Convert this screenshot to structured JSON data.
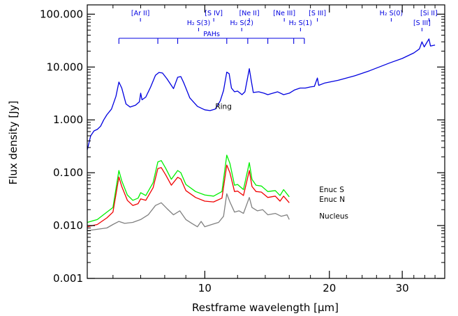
{
  "chart_data": {
    "type": "line",
    "xlabel": "Restframe wavelength [μm]",
    "ylabel": "Flux density [Jy]",
    "xscale": "log",
    "yscale": "log",
    "xlim": [
      5.2,
      38
    ],
    "ylim": [
      0.001,
      150
    ],
    "x_ticks": [
      10,
      20,
      30
    ],
    "x_tick_labels": [
      "10",
      "20",
      "30"
    ],
    "y_ticks": [
      0.001,
      0.01,
      0.1,
      1,
      10,
      100
    ],
    "y_tick_labels": [
      "0.001",
      "0.010",
      "0.100",
      "1.000",
      "10.000",
      "100.000"
    ],
    "series": [
      {
        "name": "Ring",
        "color": "#0000e0",
        "label_at": [
          10.6,
          1.6
        ],
        "points": [
          [
            5.2,
            0.27
          ],
          [
            5.3,
            0.5
          ],
          [
            5.4,
            0.62
          ],
          [
            5.5,
            0.66
          ],
          [
            5.6,
            0.76
          ],
          [
            5.7,
            1.0
          ],
          [
            5.8,
            1.25
          ],
          [
            5.95,
            1.6
          ],
          [
            6.1,
            2.8
          ],
          [
            6.2,
            5.2
          ],
          [
            6.3,
            4.0
          ],
          [
            6.45,
            2.0
          ],
          [
            6.6,
            1.75
          ],
          [
            6.8,
            1.9
          ],
          [
            6.95,
            2.2
          ],
          [
            7.0,
            3.2
          ],
          [
            7.05,
            2.4
          ],
          [
            7.2,
            2.7
          ],
          [
            7.4,
            4.2
          ],
          [
            7.6,
            7.0
          ],
          [
            7.75,
            7.9
          ],
          [
            7.9,
            7.7
          ],
          [
            8.1,
            6.0
          ],
          [
            8.3,
            4.5
          ],
          [
            8.4,
            3.9
          ],
          [
            8.6,
            6.4
          ],
          [
            8.75,
            6.6
          ],
          [
            8.9,
            5.0
          ],
          [
            9.2,
            2.6
          ],
          [
            9.6,
            1.8
          ],
          [
            10.0,
            1.55
          ],
          [
            10.3,
            1.5
          ],
          [
            10.6,
            1.6
          ],
          [
            10.9,
            2.3
          ],
          [
            11.1,
            3.6
          ],
          [
            11.3,
            8.0
          ],
          [
            11.45,
            7.5
          ],
          [
            11.6,
            4.0
          ],
          [
            11.8,
            3.4
          ],
          [
            12.0,
            3.5
          ],
          [
            12.3,
            3.0
          ],
          [
            12.5,
            3.4
          ],
          [
            12.81,
            9.3
          ],
          [
            12.95,
            5.5
          ],
          [
            13.1,
            3.3
          ],
          [
            13.5,
            3.4
          ],
          [
            13.9,
            3.2
          ],
          [
            14.2,
            3.0
          ],
          [
            14.6,
            3.2
          ],
          [
            15.0,
            3.4
          ],
          [
            15.5,
            3.0
          ],
          [
            16.0,
            3.2
          ],
          [
            16.5,
            3.7
          ],
          [
            17.0,
            4.0
          ],
          [
            17.5,
            4.0
          ],
          [
            18.0,
            4.2
          ],
          [
            18.4,
            4.3
          ],
          [
            18.71,
            6.2
          ],
          [
            18.85,
            4.5
          ],
          [
            19.5,
            5.0
          ],
          [
            21,
            5.6
          ],
          [
            23,
            6.8
          ],
          [
            25,
            8.5
          ],
          [
            28,
            12
          ],
          [
            30,
            14.5
          ],
          [
            32,
            18.5
          ],
          [
            33.0,
            22
          ],
          [
            33.48,
            30
          ],
          [
            33.9,
            24
          ],
          [
            34.2,
            27
          ],
          [
            34.8,
            34
          ],
          [
            35.1,
            25
          ],
          [
            36,
            26
          ]
        ]
      },
      {
        "name": "Enuc S",
        "color": "#00f000",
        "label_at": [
          18.9,
          0.043
        ],
        "points": [
          [
            5.2,
            0.0115
          ],
          [
            5.5,
            0.013
          ],
          [
            5.8,
            0.018
          ],
          [
            6.0,
            0.022
          ],
          [
            6.2,
            0.11
          ],
          [
            6.3,
            0.07
          ],
          [
            6.5,
            0.038
          ],
          [
            6.7,
            0.03
          ],
          [
            6.9,
            0.033
          ],
          [
            7.0,
            0.042
          ],
          [
            7.2,
            0.037
          ],
          [
            7.5,
            0.065
          ],
          [
            7.7,
            0.16
          ],
          [
            7.85,
            0.17
          ],
          [
            8.05,
            0.12
          ],
          [
            8.3,
            0.075
          ],
          [
            8.6,
            0.11
          ],
          [
            8.75,
            0.1
          ],
          [
            9.0,
            0.06
          ],
          [
            9.5,
            0.044
          ],
          [
            10.0,
            0.038
          ],
          [
            10.5,
            0.036
          ],
          [
            11.0,
            0.044
          ],
          [
            11.3,
            0.215
          ],
          [
            11.5,
            0.15
          ],
          [
            11.8,
            0.058
          ],
          [
            12.0,
            0.06
          ],
          [
            12.4,
            0.048
          ],
          [
            12.81,
            0.155
          ],
          [
            13.0,
            0.075
          ],
          [
            13.3,
            0.058
          ],
          [
            13.7,
            0.056
          ],
          [
            14.2,
            0.044
          ],
          [
            14.8,
            0.046
          ],
          [
            15.2,
            0.037
          ],
          [
            15.5,
            0.048
          ],
          [
            16.0,
            0.035
          ]
        ]
      },
      {
        "name": "Enuc N",
        "color": "#f00000",
        "label_at": [
          18.9,
          0.028
        ],
        "points": [
          [
            5.2,
            0.0095
          ],
          [
            5.5,
            0.0105
          ],
          [
            5.8,
            0.014
          ],
          [
            6.0,
            0.018
          ],
          [
            6.2,
            0.083
          ],
          [
            6.3,
            0.055
          ],
          [
            6.5,
            0.03
          ],
          [
            6.7,
            0.024
          ],
          [
            6.9,
            0.026
          ],
          [
            7.0,
            0.032
          ],
          [
            7.2,
            0.03
          ],
          [
            7.5,
            0.052
          ],
          [
            7.7,
            0.12
          ],
          [
            7.85,
            0.125
          ],
          [
            8.05,
            0.09
          ],
          [
            8.3,
            0.058
          ],
          [
            8.6,
            0.082
          ],
          [
            8.75,
            0.076
          ],
          [
            9.0,
            0.046
          ],
          [
            9.5,
            0.034
          ],
          [
            10.0,
            0.029
          ],
          [
            10.5,
            0.028
          ],
          [
            11.0,
            0.033
          ],
          [
            11.3,
            0.14
          ],
          [
            11.5,
            0.1
          ],
          [
            11.8,
            0.044
          ],
          [
            12.0,
            0.045
          ],
          [
            12.4,
            0.037
          ],
          [
            12.81,
            0.11
          ],
          [
            13.0,
            0.055
          ],
          [
            13.3,
            0.044
          ],
          [
            13.7,
            0.043
          ],
          [
            14.2,
            0.034
          ],
          [
            14.8,
            0.036
          ],
          [
            15.2,
            0.029
          ],
          [
            15.5,
            0.036
          ],
          [
            16.0,
            0.027
          ]
        ]
      },
      {
        "name": "Nucleus",
        "color": "#808080",
        "label_at": [
          18.9,
          0.0135
        ],
        "points": [
          [
            5.2,
            0.008
          ],
          [
            5.5,
            0.0085
          ],
          [
            5.8,
            0.009
          ],
          [
            6.0,
            0.0105
          ],
          [
            6.2,
            0.012
          ],
          [
            6.4,
            0.011
          ],
          [
            6.7,
            0.0115
          ],
          [
            7.0,
            0.013
          ],
          [
            7.3,
            0.016
          ],
          [
            7.6,
            0.024
          ],
          [
            7.85,
            0.027
          ],
          [
            8.1,
            0.021
          ],
          [
            8.4,
            0.016
          ],
          [
            8.7,
            0.019
          ],
          [
            9.0,
            0.013
          ],
          [
            9.3,
            0.011
          ],
          [
            9.6,
            0.0095
          ],
          [
            9.8,
            0.012
          ],
          [
            10.0,
            0.0095
          ],
          [
            10.4,
            0.0105
          ],
          [
            10.8,
            0.0115
          ],
          [
            11.1,
            0.015
          ],
          [
            11.3,
            0.04
          ],
          [
            11.5,
            0.028
          ],
          [
            11.8,
            0.018
          ],
          [
            12.1,
            0.019
          ],
          [
            12.4,
            0.017
          ],
          [
            12.81,
            0.034
          ],
          [
            13.0,
            0.022
          ],
          [
            13.4,
            0.019
          ],
          [
            13.8,
            0.02
          ],
          [
            14.2,
            0.016
          ],
          [
            14.8,
            0.017
          ],
          [
            15.3,
            0.015
          ],
          [
            15.8,
            0.016
          ],
          [
            16.0,
            0.013
          ]
        ]
      }
    ],
    "line_markers": [
      {
        "label": "[Ar II]",
        "x": 6.99,
        "row": 0
      },
      {
        "label": "[S IV]",
        "x": 10.51,
        "row": 0
      },
      {
        "label": "[Ne II]",
        "x": 12.81,
        "row": 0
      },
      {
        "label": "[Ne III]",
        "x": 15.56,
        "row": 0
      },
      {
        "label": "[S III]",
        "x": 18.71,
        "row": 0
      },
      {
        "label": "H₂ S(0)",
        "x": 28.22,
        "row": 0
      },
      {
        "label": "[Si II]",
        "x": 34.8,
        "row": 0
      },
      {
        "label": "H₂ S(3)",
        "x": 9.66,
        "row": 1
      },
      {
        "label": "H₂ S(2)",
        "x": 12.28,
        "row": 1
      },
      {
        "label": "H₂ S(1)",
        "x": 17.03,
        "row": 1
      },
      {
        "label": "[S III]",
        "x": 33.48,
        "row": 1
      }
    ],
    "pah_label": "PAHs",
    "pah_range": [
      6.2,
      17.4
    ],
    "pah_ticks": [
      6.2,
      7.7,
      8.6,
      11.3,
      12.7,
      14.2,
      16.4,
      17.4
    ]
  }
}
